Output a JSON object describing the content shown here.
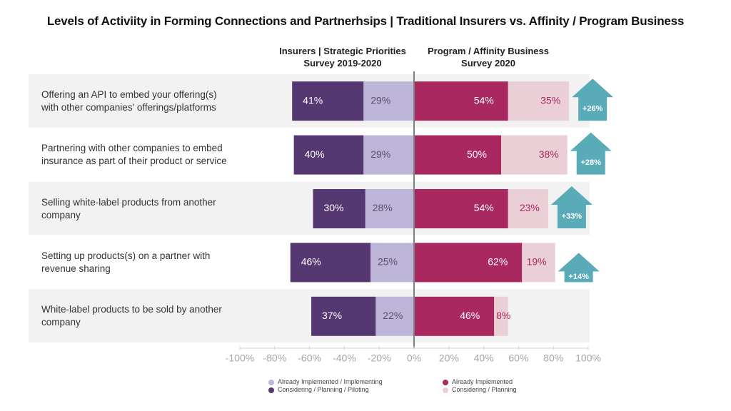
{
  "title": "Levels of Activiity in Forming Connections and Partnerhsips | Traditional Insurers vs. Affinity / Program Business",
  "column_headers": {
    "left": [
      "Insurers | Strategic Priorities",
      "Survey 2019-2020"
    ],
    "right": [
      "Program / Affinity Business",
      "Survey 2020"
    ]
  },
  "colors": {
    "insurers_considering": "#553872",
    "insurers_implemented": "#bdb6d9",
    "program_implemented": "#a8285f",
    "program_considering": "#ebcfd7",
    "arrow": "#5aabb8",
    "band": "#f2f2f2",
    "axis_line": "#808080"
  },
  "chart_data": {
    "type": "bar",
    "subtype": "diverging-stacked-horizontal",
    "title": "Levels of Activiity in Forming Connections and Partnerhsips | Traditional Insurers vs. Affinity / Program Business",
    "categories": [
      "Offering an API to embed your offering(s) with other companies' offerings/platforms",
      "Partnering with other companies to embed insurance as part of their product or service",
      "Selling white-label products from another company",
      "Setting up products(s) on a partner with revenue sharing",
      "White-label products to be sold by another company"
    ],
    "category_lines": [
      [
        "Offering an API to embed your offering(s)",
        "with other companies' offerings/platforms"
      ],
      [
        "Partnering with other companies to embed",
        "insurance as part of their product or service"
      ],
      [
        "Selling white-label products from another",
        "company"
      ],
      [
        "Setting up products(s) on a partner with",
        "revenue sharing"
      ],
      [
        "White-label products to be sold by another",
        "company"
      ]
    ],
    "series": [
      {
        "name": "Already Implemented / Implementing",
        "group": "insurers",
        "side": "left",
        "values": [
          29,
          29,
          28,
          25,
          22
        ],
        "color_key": "insurers_implemented",
        "label_color": "#5a5070"
      },
      {
        "name": "Considering / Planning / Piloting",
        "group": "insurers",
        "side": "left",
        "values": [
          41,
          40,
          30,
          46,
          37
        ],
        "color_key": "insurers_considering",
        "label_color": "#ffffff"
      },
      {
        "name": "Already Implemented",
        "group": "program",
        "side": "right",
        "values": [
          54,
          50,
          54,
          62,
          46
        ],
        "color_key": "program_implemented",
        "label_color": "#ffffff"
      },
      {
        "name": "Considering / Planning",
        "group": "program",
        "side": "right",
        "values": [
          35,
          38,
          23,
          19,
          8
        ],
        "color_key": "program_considering",
        "label_color": "#a8285f"
      }
    ],
    "difference_arrows": [
      "+26%",
      "+28%",
      "+33%",
      "+14%",
      null
    ],
    "xlim": [
      -100,
      100
    ],
    "xticks": [
      -100,
      -80,
      -60,
      -40,
      -20,
      0,
      20,
      40,
      60,
      80,
      100
    ],
    "xtick_labels": [
      "-100%",
      "-80%",
      "-60%",
      "-40%",
      "-20%",
      "0%",
      "20%",
      "40%",
      "60%",
      "80%",
      "100%"
    ],
    "xlabel": "",
    "ylabel": "",
    "grid": false,
    "legend_position": "bottom-center"
  },
  "legend": {
    "left": [
      {
        "label": "Already Implemented / Implementing",
        "color_key": "insurers_implemented"
      },
      {
        "label": "Considering / Planning / Piloting",
        "color_key": "insurers_considering"
      }
    ],
    "right": [
      {
        "label": "Already Implemented",
        "color_key": "program_implemented"
      },
      {
        "label": "Considering / Planning",
        "color_key": "program_considering"
      }
    ]
  }
}
